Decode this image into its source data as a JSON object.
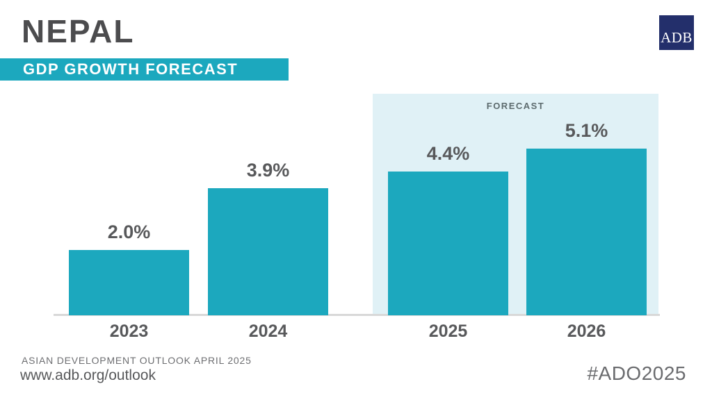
{
  "header": {
    "title": "NEPAL",
    "subtitle": "GDP GROWTH FORECAST",
    "logo_text": "ADB"
  },
  "chart_data": {
    "type": "bar",
    "title": "NEPAL GDP GROWTH FORECAST",
    "categories": [
      "2023",
      "2024",
      "2025",
      "2026"
    ],
    "values": [
      2.0,
      3.9,
      4.4,
      5.1
    ],
    "value_labels": [
      "2.0%",
      "3.9%",
      "4.4%",
      "5.1%"
    ],
    "unit": "%",
    "forecast_label": "FORECAST",
    "forecast_years": [
      "2025",
      "2026"
    ],
    "ylim": [
      0,
      6
    ],
    "grid": false,
    "legend": "none",
    "bar_color": "#1CA8BE",
    "forecast_bg": "#E0F1F6"
  },
  "footer": {
    "line1": "ASIAN DEVELOPMENT OUTLOOK APRIL 2025",
    "line2": "www.adb.org/outlook",
    "hashtag": "#ADO2025"
  },
  "theme": {
    "teal": "#1CA8BE",
    "navy": "#232F6B",
    "title_gray": "#4C4C4E",
    "label_gray": "#58595B",
    "footer_gray": "#6D6E71",
    "axis_gray": "#D8D8D8",
    "forecast_bg": "#E0F1F6"
  }
}
